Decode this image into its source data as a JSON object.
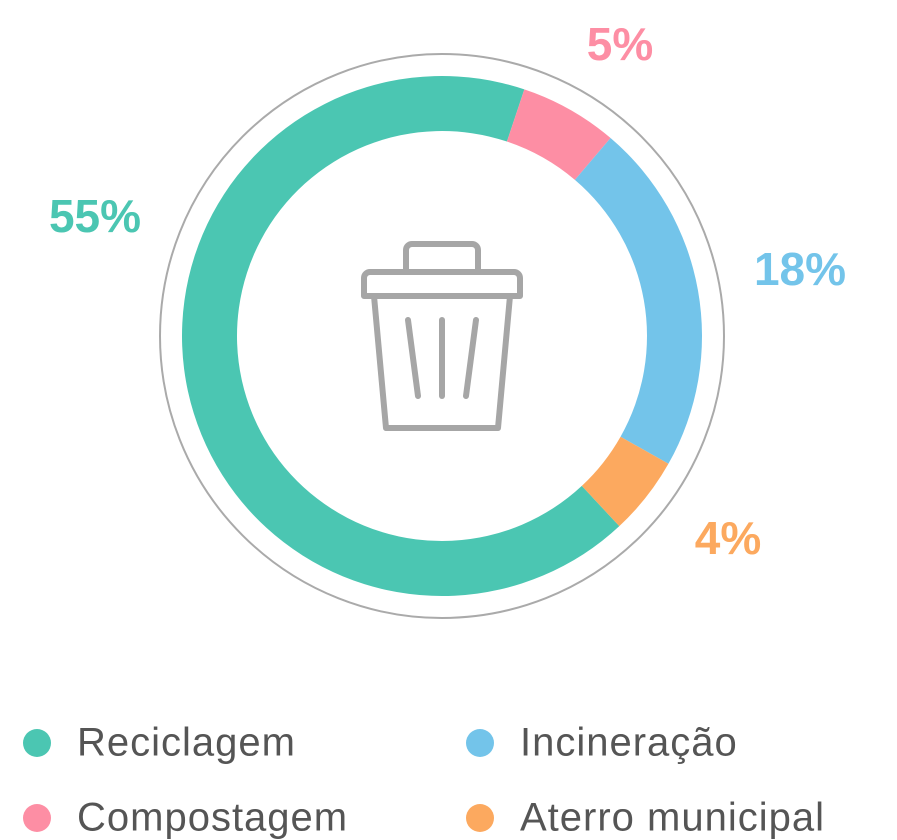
{
  "chart_data": {
    "type": "donut",
    "categories": [
      "Reciclagem",
      "Compostagem",
      "Incineração",
      "Aterro municipal"
    ],
    "values": [
      55,
      5,
      18,
      4
    ],
    "value_labels": [
      "55%",
      "5%",
      "18%",
      "4%"
    ],
    "colors": [
      "#4bc6b2",
      "#fd8ea4",
      "#73c4ea",
      "#fca95f"
    ],
    "legend": "bottom"
  }
}
